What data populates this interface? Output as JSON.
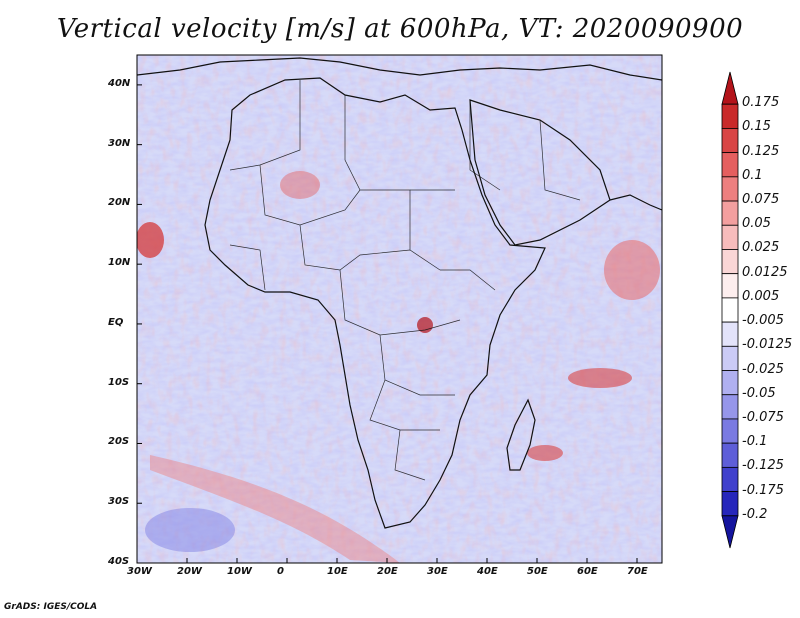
{
  "title": "Vertical velocity [m/s] at 600hPa, VT: 2020090900",
  "footer": "GrADS: IGES/COLA",
  "map": {
    "region": "Africa",
    "lon_range": [
      -30,
      75
    ],
    "lat_range": [
      -40,
      45
    ],
    "x_ticks": [
      "30W",
      "20W",
      "10W",
      "0",
      "10E",
      "20E",
      "30E",
      "40E",
      "50E",
      "60E",
      "70E"
    ],
    "y_ticks": [
      "40N",
      "30N",
      "20N",
      "10N",
      "EQ",
      "10S",
      "20S",
      "30S",
      "40S"
    ],
    "background_tint": "#d8dcf8"
  },
  "colorbar": {
    "labels": [
      "0.175",
      "0.15",
      "0.125",
      "0.1",
      "0.075",
      "0.05",
      "0.025",
      "0.0125",
      "0.005",
      "-0.005",
      "-0.0125",
      "-0.025",
      "-0.05",
      "-0.075",
      "-0.1",
      "-0.125",
      "-0.175",
      "-0.2"
    ],
    "colors": [
      "#b3131a",
      "#c92a2a",
      "#d84545",
      "#e55f5f",
      "#ed7f7f",
      "#f39f9f",
      "#f7bcbc",
      "#fad6d6",
      "#fdeeee",
      "#ffffff",
      "#e3e3fa",
      "#cbcbf6",
      "#b0b0f0",
      "#9696ea",
      "#7a7ae2",
      "#5e5ed8",
      "#4040cc",
      "#2626bb",
      "#14149e"
    ]
  }
}
